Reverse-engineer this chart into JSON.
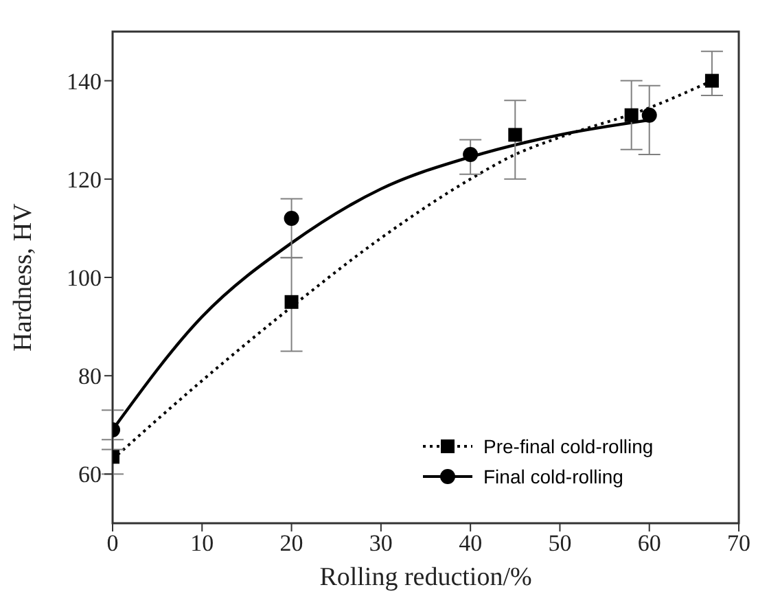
{
  "chart_data": {
    "type": "scatter",
    "xlabel": "Rolling reduction/%",
    "ylabel": "Hardness, HV",
    "xlim": [
      0,
      70
    ],
    "xticks": [
      0,
      10,
      20,
      30,
      40,
      50,
      60,
      70
    ],
    "ylim": [
      50,
      150
    ],
    "yticks": [
      60,
      80,
      100,
      120,
      140
    ],
    "legend": "bottom right",
    "series": [
      {
        "name": "Pre-final cold-rolling",
        "marker": "square",
        "color": "#000000",
        "x": [
          0,
          20,
          45,
          58,
          67
        ],
        "values": [
          63.5,
          95,
          129,
          133,
          140
        ],
        "errors": [
          [
            60,
            67
          ],
          [
            85,
            104
          ],
          [
            120,
            136
          ],
          [
            126,
            140
          ],
          [
            137,
            146
          ]
        ]
      },
      {
        "name": "Final cold-rolling",
        "marker": "circle",
        "color": "#000000",
        "x": [
          0,
          20,
          40,
          60
        ],
        "values": [
          69,
          112,
          125,
          133
        ],
        "errors": [
          [
            65,
            73
          ],
          [
            104,
            116
          ],
          [
            121,
            128
          ],
          [
            125,
            139
          ]
        ]
      },
      {
        "type": "line",
        "line_style": "dotted",
        "marker": "none",
        "color": "#000000",
        "x": [
          0,
          10,
          20,
          30,
          40,
          45,
          50,
          60,
          67
        ],
        "values": [
          63,
          79,
          94,
          108,
          120,
          125,
          128.5,
          134.5,
          140
        ]
      },
      {
        "type": "line",
        "line_style": "solid",
        "marker": "none",
        "color": "#000000",
        "x": [
          0,
          10,
          20,
          30,
          40,
          50,
          60
        ],
        "values": [
          69,
          92,
          107,
          118,
          124.5,
          129,
          132
        ]
      }
    ]
  }
}
